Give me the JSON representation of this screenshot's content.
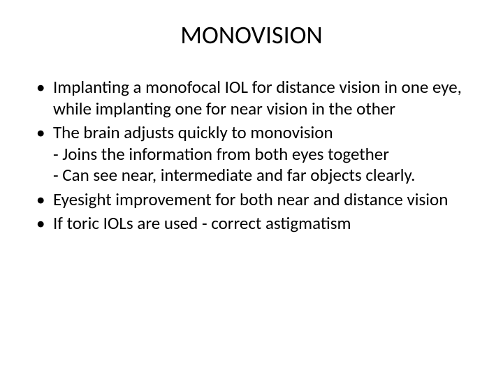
{
  "slide": {
    "title": "MONOVISION",
    "title_fontsize": 36,
    "body_fontsize": 25,
    "background_color": "#ffffff",
    "text_color": "#000000",
    "bullets": [
      {
        "text": "Implanting a monofocal IOL for distance vision in one eye, while implanting one for near vision in the other"
      },
      {
        "text": "The brain adjusts quickly to monovision",
        "sublines": [
          "- Joins the information from both eyes together",
          "- Can see near, intermediate and far objects clearly."
        ]
      },
      {
        "text": "Eyesight improvement for both near and distance vision"
      },
      {
        "text": "If toric IOLs are used - correct astigmatism"
      }
    ]
  }
}
